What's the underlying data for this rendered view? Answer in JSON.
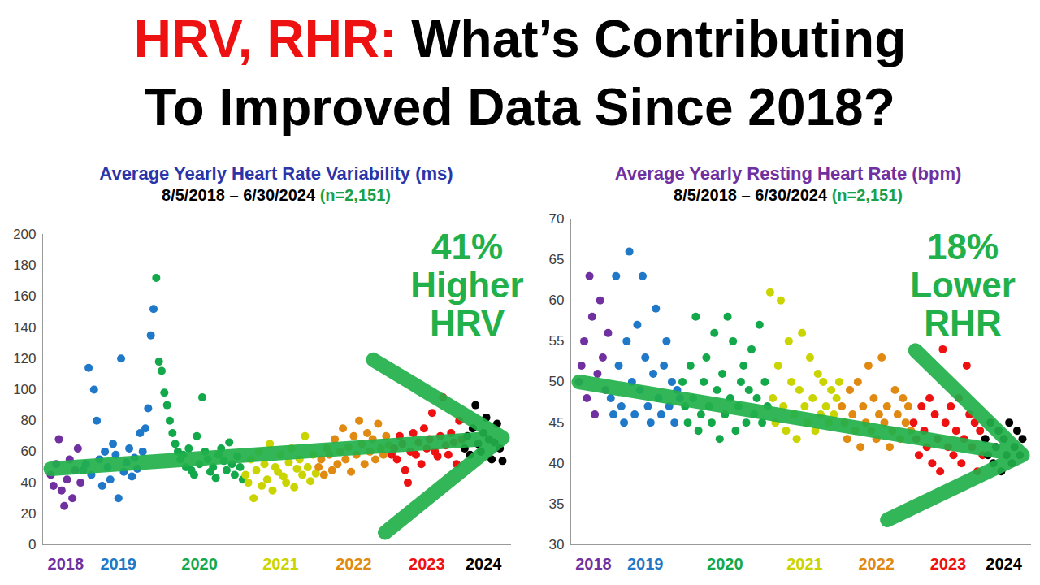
{
  "title": {
    "lines": [
      [
        {
          "text": "HRV, RHR:",
          "color": "#ee1111"
        },
        {
          "text": "What’s Contributing",
          "color": "#000000"
        }
      ],
      [
        {
          "text": "To Improved Data Since 2018?",
          "color": "#000000"
        }
      ]
    ]
  },
  "chart_data": [
    {
      "type": "scatter",
      "title": "Average Yearly Heart Rate Variability (ms)",
      "subtitle": "8/5/2018 – 6/30/2024",
      "n_label": "(n=2,151)",
      "annotation": [
        "41%",
        "Higher",
        "HRV"
      ],
      "trend": {
        "from": 49,
        "to": 69
      },
      "ylim": [
        0,
        200
      ],
      "yticks": [
        0,
        20,
        40,
        60,
        80,
        100,
        120,
        140,
        160,
        180,
        200
      ],
      "grid": false,
      "tick_labels": "y",
      "series": [
        {
          "name": "2018",
          "color": "#7030a0",
          "values": [
            45,
            38,
            52,
            68,
            35,
            25,
            42,
            55,
            30,
            48,
            62,
            40
          ]
        },
        {
          "name": "2019",
          "color": "#1f78c8",
          "values": [
            48,
            52,
            114,
            45,
            100,
            80,
            55,
            38,
            60,
            50,
            42,
            65,
            58,
            30,
            120,
            47,
            53,
            62,
            44,
            56,
            49,
            72,
            60,
            75,
            88,
            135,
            152
          ]
        },
        {
          "name": "2020",
          "color": "#13a84a",
          "values": [
            172,
            118,
            112,
            98,
            90,
            80,
            72,
            65,
            60,
            55,
            58,
            50,
            62,
            48,
            45,
            70,
            52,
            95,
            60,
            55,
            47,
            50,
            43,
            58,
            62,
            54,
            48,
            66,
            52,
            45,
            57,
            50,
            42
          ]
        },
        {
          "name": "2021",
          "color": "#c9d400",
          "values": [
            45,
            40,
            55,
            30,
            48,
            60,
            38,
            52,
            42,
            65,
            35,
            50,
            47,
            58,
            44,
            40,
            53,
            62,
            37,
            49,
            55,
            45,
            70,
            50,
            41,
            58,
            46
          ]
        },
        {
          "name": "2022",
          "color": "#e08a12",
          "values": [
            50,
            55,
            45,
            62,
            58,
            48,
            68,
            52,
            60,
            75,
            55,
            63,
            47,
            70,
            58,
            80,
            65,
            52,
            72,
            60,
            68,
            55,
            78,
            62,
            58,
            70,
            64
          ]
        },
        {
          "name": "2023",
          "color": "#ee1111",
          "values": [
            58,
            62,
            55,
            70,
            65,
            48,
            40,
            60,
            72,
            58,
            66,
            52,
            75,
            62,
            68,
            85,
            60,
            57,
            70,
            95,
            64,
            58,
            72,
            66,
            52,
            80,
            68
          ]
        },
        {
          "name": "2024",
          "color": "#000000",
          "values": [
            62,
            70,
            58,
            75,
            90,
            65,
            60,
            72,
            82,
            68,
            55,
            66,
            78,
            62,
            54
          ]
        }
      ]
    },
    {
      "type": "scatter",
      "title": "Average Yearly Resting Heart Rate (bpm)",
      "subtitle": "8/5/2018 – 6/30/2024",
      "n_label": "(n=2,151)",
      "annotation": [
        "18%",
        "Lower",
        "RHR"
      ],
      "trend": {
        "from": 50,
        "to": 41
      },
      "ylim": [
        30,
        70
      ],
      "yticks": [
        30,
        35,
        40,
        45,
        50,
        55,
        60,
        65,
        70
      ],
      "grid": false,
      "tick_labels": "y",
      "series": [
        {
          "name": "2018",
          "color": "#7030a0",
          "values": [
            50,
            52,
            55,
            48,
            63,
            58,
            46,
            51,
            60,
            53,
            49,
            56
          ]
        },
        {
          "name": "2019",
          "color": "#1f78c8",
          "values": [
            48,
            46,
            63,
            52,
            47,
            45,
            55,
            66,
            50,
            46,
            57,
            49,
            63,
            53,
            47,
            45,
            51,
            59,
            48,
            46,
            52,
            55,
            47,
            50,
            45,
            49,
            48
          ]
        },
        {
          "name": "2020",
          "color": "#13a84a",
          "values": [
            50,
            47,
            45,
            52,
            48,
            58,
            44,
            46,
            50,
            53,
            47,
            45,
            56,
            49,
            43,
            51,
            46,
            58,
            48,
            55,
            44,
            47,
            50,
            52,
            45,
            49,
            54,
            46,
            48,
            57,
            45,
            50,
            47
          ]
        },
        {
          "name": "2021",
          "color": "#c9d400",
          "values": [
            61,
            48,
            45,
            52,
            60,
            47,
            44,
            55,
            50,
            46,
            43,
            49,
            56,
            47,
            45,
            53,
            48,
            44,
            51,
            46,
            50,
            47,
            45,
            49,
            46,
            48,
            50
          ]
        },
        {
          "name": "2022",
          "color": "#e08a12",
          "values": [
            47,
            45,
            43,
            49,
            46,
            44,
            50,
            42,
            47,
            45,
            52,
            44,
            48,
            43,
            46,
            53,
            45,
            47,
            42,
            44,
            49,
            46,
            43,
            48,
            45,
            47,
            44
          ]
        },
        {
          "name": "2023",
          "color": "#ee1111",
          "values": [
            45,
            43,
            41,
            47,
            44,
            42,
            48,
            40,
            46,
            43,
            39,
            54,
            45,
            42,
            47,
            41,
            44,
            48,
            40,
            43,
            52,
            46,
            42,
            45,
            39,
            44,
            41
          ]
        },
        {
          "name": "2024",
          "color": "#000000",
          "values": [
            43,
            41,
            45,
            40,
            42,
            44,
            39,
            43,
            41,
            45,
            40,
            42,
            44,
            41,
            43
          ]
        }
      ]
    }
  ]
}
